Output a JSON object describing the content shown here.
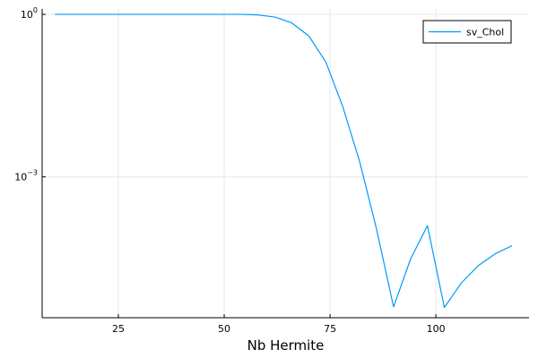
{
  "chart_data": {
    "type": "line",
    "title": "",
    "xlabel": "Nb Hermite",
    "ylabel": "",
    "xlim": [
      7,
      122
    ],
    "ylim_log10": [
      -5.6,
      0.1
    ],
    "yscale": "log10",
    "grid": true,
    "legend_position": "top-right",
    "x_ticks": [
      {
        "value": 25,
        "label": "25"
      },
      {
        "value": 50,
        "label": "50"
      },
      {
        "value": 75,
        "label": "75"
      },
      {
        "value": 100,
        "label": "100"
      }
    ],
    "y_ticks": [
      {
        "log10": 0,
        "base": "10",
        "exp": "0"
      },
      {
        "log10": -3,
        "base": "10",
        "exp": "−3"
      }
    ],
    "series": [
      {
        "name": "sv_Chol",
        "color": "#009AFA",
        "x": [
          10,
          14,
          18,
          22,
          26,
          30,
          34,
          38,
          42,
          46,
          50,
          54,
          58,
          62,
          66,
          70,
          74,
          78,
          82,
          86,
          90,
          94,
          98,
          102,
          106,
          110,
          114,
          118
        ],
        "log10_y": [
          0,
          0,
          0,
          0,
          0,
          0,
          0,
          0,
          0,
          0,
          0,
          0,
          -0.01,
          -0.05,
          -0.16,
          -0.4,
          -0.88,
          -1.7,
          -2.72,
          -3.97,
          -5.4,
          -4.52,
          -3.9,
          -5.41,
          -4.96,
          -4.64,
          -4.42,
          -4.27
        ]
      }
    ]
  }
}
